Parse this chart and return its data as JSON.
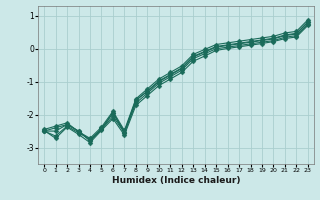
{
  "xlabel": "Humidex (Indice chaleur)",
  "ylabel": "",
  "background_color": "#cce8e8",
  "grid_color": "#aacece",
  "line_color": "#1a6b5a",
  "xlim": [
    -0.5,
    23.5
  ],
  "ylim": [
    -3.5,
    1.3
  ],
  "yticks": [
    1,
    0,
    -1,
    -2,
    -3
  ],
  "xticks": [
    0,
    1,
    2,
    3,
    4,
    5,
    6,
    7,
    8,
    9,
    10,
    11,
    12,
    13,
    14,
    15,
    16,
    17,
    18,
    19,
    20,
    21,
    22,
    23
  ],
  "x": [
    0,
    1,
    2,
    3,
    4,
    5,
    6,
    7,
    8,
    9,
    10,
    11,
    12,
    13,
    14,
    15,
    16,
    17,
    18,
    19,
    20,
    21,
    22,
    23
  ],
  "series": [
    [
      -2.5,
      -2.65,
      -2.35,
      -2.55,
      -2.75,
      -2.45,
      -2.05,
      -2.55,
      -1.65,
      -1.35,
      -1.05,
      -0.85,
      -0.65,
      -0.3,
      -0.15,
      0.0,
      0.05,
      0.1,
      0.15,
      0.2,
      0.25,
      0.35,
      0.4,
      0.75
    ],
    [
      -2.5,
      -2.5,
      -2.3,
      -2.5,
      -2.78,
      -2.42,
      -1.95,
      -2.52,
      -1.58,
      -1.28,
      -0.98,
      -0.78,
      -0.58,
      -0.23,
      -0.08,
      0.07,
      0.12,
      0.17,
      0.22,
      0.27,
      0.32,
      0.42,
      0.47,
      0.82
    ],
    [
      -2.5,
      -2.4,
      -2.3,
      -2.5,
      -2.8,
      -2.45,
      -1.95,
      -2.55,
      -1.55,
      -1.3,
      -1.0,
      -0.8,
      -0.6,
      -0.25,
      -0.1,
      0.05,
      0.1,
      0.15,
      0.2,
      0.25,
      0.3,
      0.4,
      0.45,
      0.8
    ],
    [
      -2.45,
      -2.35,
      -2.25,
      -2.52,
      -2.72,
      -2.38,
      -1.9,
      -2.48,
      -1.52,
      -1.22,
      -0.92,
      -0.72,
      -0.52,
      -0.17,
      -0.02,
      0.13,
      0.18,
      0.23,
      0.28,
      0.33,
      0.38,
      0.48,
      0.53,
      0.88
    ],
    [
      -2.48,
      -2.72,
      -2.38,
      -2.6,
      -2.85,
      -2.48,
      -2.12,
      -2.62,
      -1.72,
      -1.42,
      -1.12,
      -0.92,
      -0.72,
      -0.38,
      -0.22,
      -0.05,
      0.01,
      0.06,
      0.11,
      0.16,
      0.22,
      0.31,
      0.36,
      0.71
    ]
  ],
  "marker": "D",
  "markersize": 2.5,
  "linewidth": 0.8,
  "figsize": [
    3.2,
    2.0
  ],
  "dpi": 100
}
